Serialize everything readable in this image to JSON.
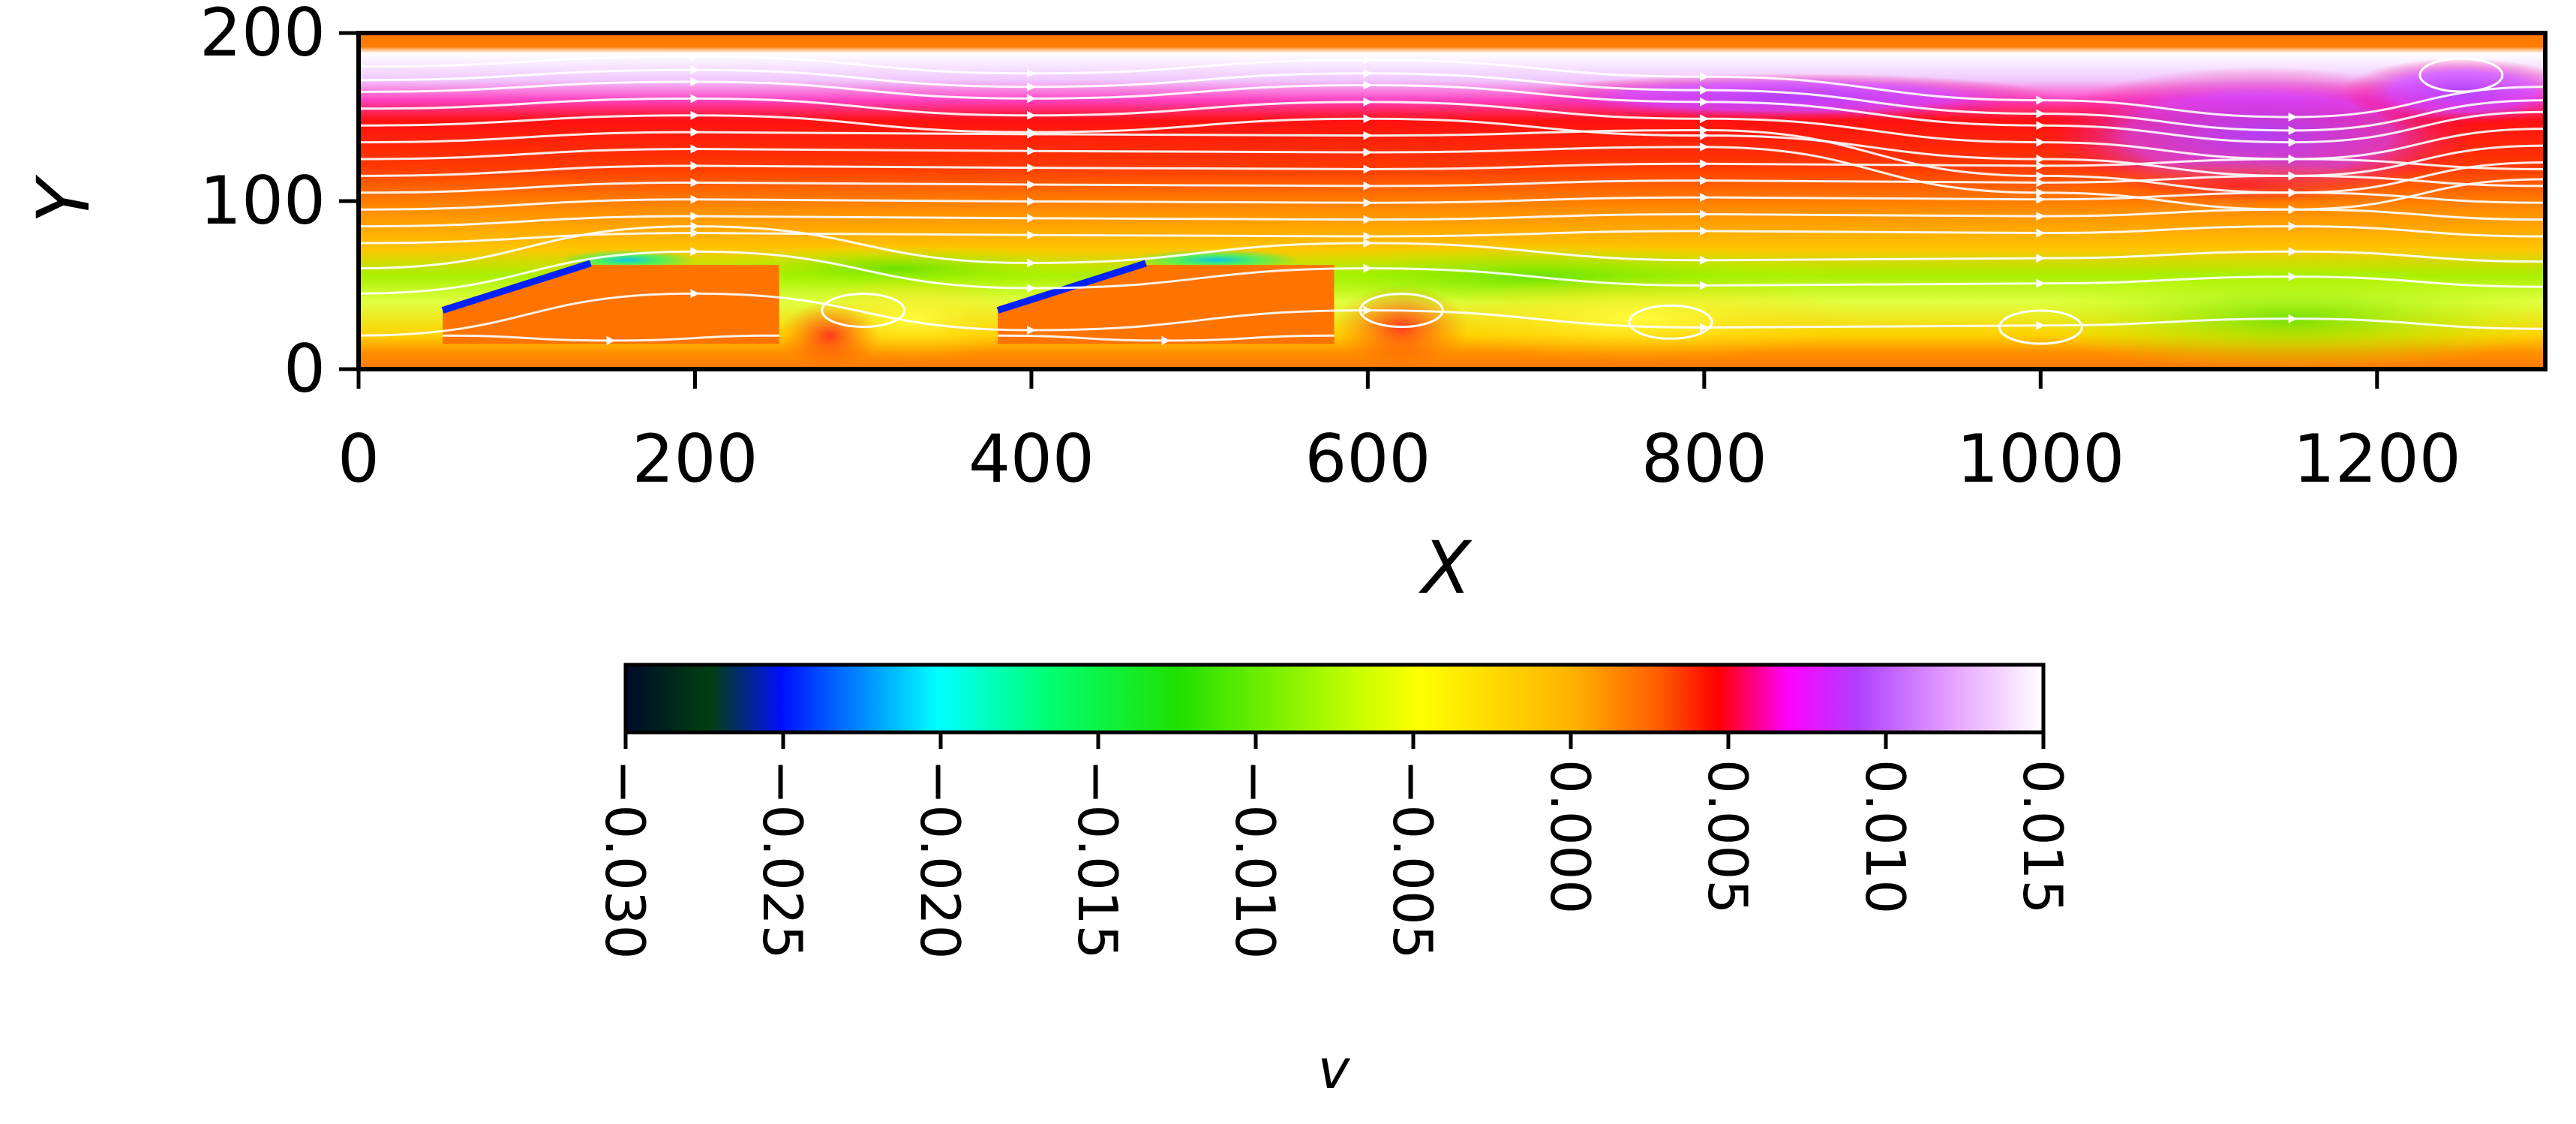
{
  "chart_data": {
    "type": "heatmap",
    "title": "",
    "xlabel": "X",
    "ylabel": "Y",
    "xlim": [
      0,
      1300
    ],
    "ylim": [
      0,
      200
    ],
    "x_ticks": [
      "0",
      "200",
      "400",
      "600",
      "800",
      "1000",
      "1200"
    ],
    "x_tick_values": [
      0,
      200,
      400,
      600,
      800,
      1000,
      1200
    ],
    "y_ticks": [
      "0",
      "100",
      "200"
    ],
    "y_tick_values": [
      0,
      100,
      200
    ],
    "grid": false,
    "colormap": "gist_ncar-like",
    "colorbar": {
      "label": "v",
      "orientation": "horizontal",
      "location": "bottom",
      "range": [
        -0.03,
        0.015
      ],
      "ticks": [
        "−0.030",
        "−0.025",
        "−0.020",
        "−0.015",
        "−0.010",
        "−0.005",
        "0.000",
        "0.005",
        "0.010",
        "0.015"
      ],
      "tick_values": [
        -0.03,
        -0.025,
        -0.02,
        -0.015,
        -0.01,
        -0.005,
        0.0,
        0.005,
        0.01,
        0.015
      ]
    },
    "obstacles": [
      {
        "name": "block-1",
        "outline": [
          [
            50,
            35
          ],
          [
            130,
            62
          ],
          [
            250,
            62
          ],
          [
            250,
            15
          ],
          [
            50,
            15
          ]
        ]
      },
      {
        "name": "block-2",
        "outline": [
          [
            380,
            35
          ],
          [
            460,
            62
          ],
          [
            580,
            62
          ],
          [
            580,
            15
          ],
          [
            380,
            15
          ]
        ]
      }
    ],
    "field_regions": [
      {
        "name": "top-band-white",
        "x": [
          0,
          650
        ],
        "y": [
          168,
          192
        ],
        "v": 0.015
      },
      {
        "name": "top-band-purple",
        "x": [
          0,
          650
        ],
        "y": [
          158,
          170
        ],
        "v": 0.008
      },
      {
        "name": "upper-red",
        "x": [
          0,
          1300
        ],
        "y": [
          100,
          160
        ],
        "v": 0.003
      },
      {
        "name": "mid-orange",
        "x": [
          0,
          1300
        ],
        "y": [
          70,
          100
        ],
        "v": 0.0
      },
      {
        "name": "lower-yellow-green",
        "x": [
          0,
          1300
        ],
        "y": [
          10,
          70
        ],
        "v": -0.008
      },
      {
        "name": "wake-purple",
        "x": [
          950,
          1300
        ],
        "y": [
          110,
          180
        ],
        "v": 0.009
      }
    ],
    "colors": {
      "obstacle_fill": "#ff7300",
      "streamline": "#ffffff",
      "frame": "#000000"
    }
  }
}
